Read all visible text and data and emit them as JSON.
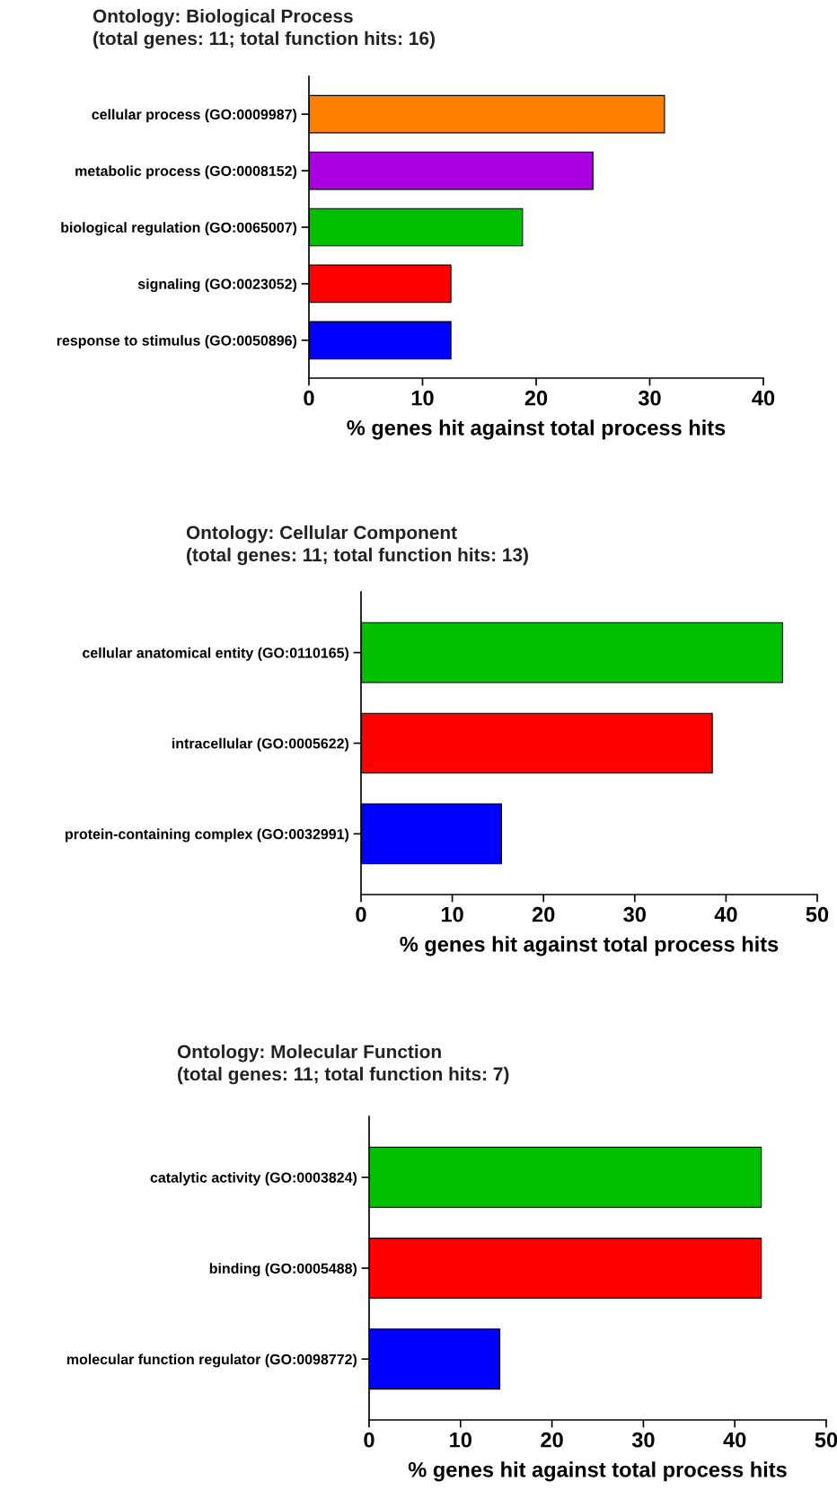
{
  "chart_data": [
    {
      "type": "bar",
      "orientation": "horizontal",
      "title": "Ontology: Biological Process",
      "subtitle": "(total genes: 11; total function hits: 16)",
      "categories": [
        "cellular process (GO:0009987)",
        "metabolic process (GO:0008152)",
        "biological regulation (GO:0065007)",
        "signaling (GO:0023052)",
        "response to stimulus (GO:0050896)"
      ],
      "values": [
        31.3,
        25,
        18.8,
        12.5,
        12.5
      ],
      "colors": [
        "#ff8000",
        "#a800e0",
        "#00c000",
        "#ff0000",
        "#0000ff"
      ],
      "xlabel": "% genes hit against total process hits",
      "xlim": [
        0,
        40
      ],
      "xticks": [
        0,
        10,
        20,
        30,
        40
      ],
      "grid": false
    },
    {
      "type": "bar",
      "orientation": "horizontal",
      "title": "Ontology: Cellular Component",
      "subtitle": "(total genes: 11; total function hits: 13)",
      "categories": [
        "cellular anatomical entity (GO:0110165)",
        "intracellular (GO:0005622)",
        "protein-containing complex (GO:0032991)"
      ],
      "values": [
        46.2,
        38.5,
        15.4
      ],
      "colors": [
        "#00c000",
        "#ff0000",
        "#0000ff"
      ],
      "xlabel": "% genes hit against total process hits",
      "xlim": [
        0,
        50
      ],
      "xticks": [
        0,
        10,
        20,
        30,
        40,
        50
      ],
      "grid": false
    },
    {
      "type": "bar",
      "orientation": "horizontal",
      "title": "Ontology: Molecular Function",
      "subtitle": "(total genes: 11; total function hits: 7)",
      "categories": [
        "catalytic activity (GO:0003824)",
        "binding (GO:0005488)",
        "molecular function regulator (GO:0098772)"
      ],
      "values": [
        42.9,
        42.9,
        14.3
      ],
      "colors": [
        "#00c000",
        "#ff0000",
        "#0000ff"
      ],
      "xlabel": "% genes hit against total process hits",
      "xlim": [
        0,
        50
      ],
      "xticks": [
        0,
        10,
        20,
        30,
        40,
        50
      ],
      "grid": false
    }
  ]
}
